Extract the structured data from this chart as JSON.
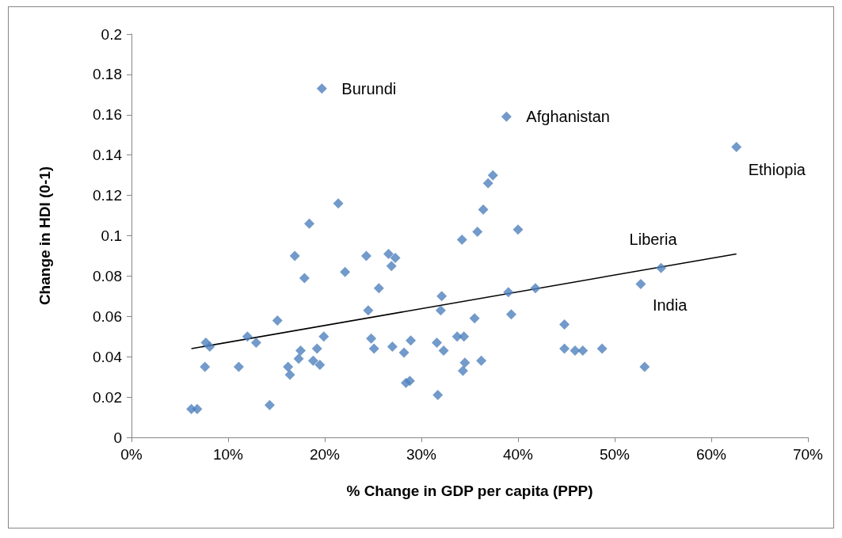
{
  "chart_data": {
    "type": "scatter",
    "xlabel": "% Change in GDP per capita (PPP)",
    "ylabel": "Change in HDI (0-1)",
    "xlim": [
      0,
      70
    ],
    "xticks": [
      {
        "value": 0,
        "label": "0%"
      },
      {
        "value": 10,
        "label": "10%"
      },
      {
        "value": 20,
        "label": "20%"
      },
      {
        "value": 30,
        "label": "30%"
      },
      {
        "value": 40,
        "label": "40%"
      },
      {
        "value": 50,
        "label": "50%"
      },
      {
        "value": 60,
        "label": "60%"
      },
      {
        "value": 70,
        "label": "70%"
      }
    ],
    "ylim": [
      0,
      0.2
    ],
    "yticks": [
      0,
      0.02,
      0.04,
      0.06,
      0.08,
      0.1,
      0.12,
      0.14,
      0.16,
      0.18,
      0.2
    ],
    "grid": false,
    "marker": "diamond",
    "series": [
      {
        "color": "#4f81bd",
        "x": [
          6.2,
          6.8,
          7.7,
          8.1,
          7.6,
          11.1,
          12.0,
          12.9,
          14.3,
          15.1,
          16.2,
          16.4,
          16.9,
          17.9,
          18.4,
          17.3,
          17.5,
          18.8,
          19.2,
          19.5,
          19.9,
          19.7,
          21.4,
          22.1,
          24.3,
          26.6,
          27.3,
          26.9,
          25.6,
          24.5,
          24.8,
          25.1,
          27.0,
          28.9,
          28.2,
          28.4,
          28.8,
          31.7,
          31.6,
          32.3,
          32.1,
          32.0,
          34.2,
          35.8,
          40.0,
          33.7,
          34.4,
          34.5,
          34.3,
          36.2,
          35.5,
          39.0,
          39.3,
          41.8,
          44.8,
          44.8,
          45.9,
          46.7,
          48.7,
          53.1,
          52.7,
          54.8,
          38.8,
          37.4,
          36.9,
          36.4,
          62.6
        ],
        "values": [
          0.014,
          0.014,
          0.047,
          0.045,
          0.035,
          0.035,
          0.05,
          0.047,
          0.016,
          0.058,
          0.035,
          0.031,
          0.09,
          0.079,
          0.106,
          0.039,
          0.043,
          0.038,
          0.044,
          0.036,
          0.05,
          0.173,
          0.116,
          0.082,
          0.09,
          0.091,
          0.089,
          0.085,
          0.074,
          0.063,
          0.049,
          0.044,
          0.045,
          0.048,
          0.042,
          0.027,
          0.028,
          0.021,
          0.047,
          0.043,
          0.07,
          0.063,
          0.098,
          0.102,
          0.103,
          0.05,
          0.05,
          0.037,
          0.033,
          0.038,
          0.059,
          0.072,
          0.061,
          0.074,
          0.056,
          0.044,
          0.043,
          0.043,
          0.044,
          0.035,
          0.076,
          0.084,
          0.159,
          0.13,
          0.126,
          0.113,
          0.144
        ]
      },
      {
        "type": "line",
        "color": "#000000",
        "marker": "none",
        "x": [
          6.2,
          62.6
        ],
        "values": [
          0.044,
          0.091
        ]
      }
    ],
    "annotations": [
      {
        "text": "Burundi",
        "x": 19.7,
        "y": 0.173
      },
      {
        "text": "Afghanistan",
        "x": 38.8,
        "y": 0.159
      },
      {
        "text": "Ethiopia",
        "x": 62.6,
        "y": 0.144
      },
      {
        "text": "Liberia",
        "x": 54.8,
        "y": 0.084
      },
      {
        "text": "India",
        "x": 52.7,
        "y": 0.076
      }
    ]
  }
}
